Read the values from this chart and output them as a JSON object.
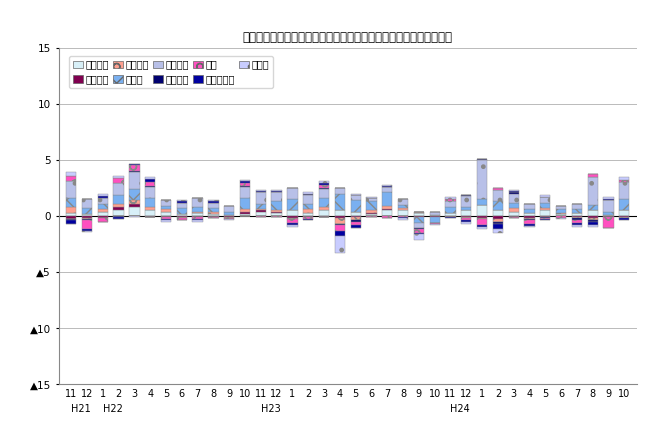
{
  "title": "三重県鉱工業生産の業種別前月比寄与度の推移（季節調整済指数）",
  "categories": [
    "11",
    "12",
    "1",
    "2",
    "3",
    "4",
    "5",
    "6",
    "7",
    "8",
    "9",
    "10",
    "11",
    "12",
    "1",
    "2",
    "3",
    "4",
    "5",
    "6",
    "7",
    "8",
    "9",
    "10",
    "11",
    "12",
    "1",
    "2",
    "3",
    "4",
    "5",
    "6",
    "7",
    "8",
    "9",
    "10"
  ],
  "year_labels": [
    {
      "label": "H21",
      "index": 0
    },
    {
      "label": "H22",
      "index": 2
    },
    {
      "label": "H23",
      "index": 12
    },
    {
      "label": "H24",
      "index": 24
    }
  ],
  "series_names": [
    "一般機械",
    "電気機械",
    "情報通信",
    "電デバ",
    "輸送機械",
    "窯業土石",
    "化学",
    "その他工業",
    "その他"
  ],
  "ylim": [
    -15,
    15
  ],
  "yticks": [
    -15,
    -10,
    -5,
    0,
    5,
    10,
    15
  ],
  "colors": {
    "一般機械": "#d8f0f8",
    "電気機械": "#800050",
    "情報通信": "#ffa090",
    "電デバ": "#7ab0f0",
    "輸送機械": "#b8c0e8",
    "窯業土石": "#000070",
    "化学": "#ff50c0",
    "その他工業": "#0000a0",
    "その他": "#c8ccff"
  },
  "hatches": {
    "一般機械": "",
    "電気機械": "",
    "情報通信": "o",
    "電デバ": "x",
    "輸送機械": ".",
    "窯業土石": "",
    "化学": "o",
    "その他工業": "",
    "その他": "."
  },
  "data": {
    "一般機械": [
      0.3,
      0.2,
      0.4,
      0.5,
      0.8,
      0.5,
      0.4,
      0.2,
      0.3,
      0.2,
      0.1,
      0.2,
      0.4,
      0.3,
      0.5,
      0.3,
      0.5,
      0.5,
      0.4,
      0.2,
      0.5,
      0.5,
      0.3,
      0.1,
      0.3,
      0.5,
      1.0,
      0.5,
      0.4,
      0.3,
      0.5,
      0.2,
      0.3,
      0.5,
      0.1,
      0.5
    ],
    "電気機械": [
      -0.3,
      -0.2,
      -0.2,
      0.3,
      0.3,
      -0.1,
      -0.1,
      -0.1,
      -0.1,
      -0.1,
      -0.05,
      0.2,
      0.1,
      0.1,
      -0.2,
      -0.1,
      -0.1,
      -0.2,
      -0.1,
      0.1,
      0.1,
      0.0,
      -0.1,
      -0.1,
      -0.1,
      -0.1,
      -0.2,
      -0.3,
      -0.1,
      -0.2,
      -0.1,
      0.0,
      -0.1,
      -0.2,
      -0.05,
      -0.1
    ],
    "情報通信": [
      0.5,
      -0.1,
      0.2,
      0.3,
      0.3,
      0.3,
      0.2,
      -0.1,
      0.1,
      0.2,
      -0.1,
      0.2,
      0.1,
      0.1,
      -0.1,
      0.3,
      0.3,
      -0.5,
      -0.3,
      0.2,
      0.3,
      0.2,
      0.1,
      0.0,
      0.0,
      -0.1,
      -0.1,
      -0.2,
      0.3,
      -0.1,
      0.2,
      0.1,
      -0.1,
      -0.2,
      0.0,
      -0.1
    ],
    "電デバ": [
      0.8,
      0.5,
      0.5,
      0.8,
      1.0,
      0.8,
      0.3,
      0.5,
      0.4,
      0.3,
      0.3,
      1.0,
      0.5,
      0.8,
      1.0,
      0.5,
      0.8,
      1.5,
      1.0,
      0.8,
      1.2,
      0.3,
      -0.5,
      -0.5,
      0.5,
      0.3,
      0.5,
      0.8,
      0.5,
      0.3,
      0.5,
      0.3,
      0.3,
      0.5,
      0.3,
      1.0
    ],
    "輸送機械": [
      1.5,
      0.8,
      0.5,
      1.0,
      1.5,
      1.0,
      0.5,
      0.5,
      0.8,
      0.5,
      0.5,
      1.0,
      1.0,
      0.8,
      1.0,
      0.8,
      0.8,
      0.5,
      0.5,
      0.3,
      0.5,
      0.5,
      -0.5,
      0.3,
      0.5,
      1.0,
      3.5,
      1.0,
      0.8,
      0.5,
      0.5,
      0.3,
      0.5,
      2.5,
      1.0,
      1.5
    ],
    "窯業土石": [
      -0.1,
      -0.1,
      0.0,
      -0.1,
      0.1,
      0.1,
      0.0,
      0.0,
      0.0,
      0.0,
      0.0,
      0.1,
      0.0,
      0.0,
      0.0,
      0.1,
      0.1,
      -0.1,
      -0.1,
      0.0,
      0.0,
      0.0,
      -0.1,
      0.0,
      0.0,
      0.1,
      0.1,
      -0.2,
      0.1,
      -0.1,
      -0.1,
      0.0,
      -0.2,
      -0.1,
      0.0,
      0.0
    ],
    "化学": [
      0.5,
      -0.8,
      -0.3,
      0.5,
      0.5,
      0.3,
      -0.2,
      -0.2,
      -0.2,
      -0.1,
      -0.1,
      0.2,
      -0.1,
      -0.1,
      -0.3,
      -0.2,
      0.3,
      -0.5,
      -0.3,
      -0.1,
      -0.2,
      -0.1,
      -0.3,
      -0.1,
      0.2,
      -0.2,
      -0.5,
      0.2,
      -0.1,
      -0.3,
      -0.1,
      -0.2,
      -0.2,
      0.2,
      -1.0,
      0.2
    ],
    "その他工業": [
      -0.3,
      -0.1,
      0.2,
      -0.2,
      0.1,
      0.3,
      -0.1,
      0.1,
      -0.1,
      0.1,
      0.0,
      0.2,
      0.1,
      0.1,
      -0.2,
      -0.1,
      0.1,
      -0.5,
      -0.3,
      0.0,
      0.1,
      -0.1,
      -0.1,
      0.0,
      -0.1,
      -0.1,
      -0.2,
      -0.5,
      0.1,
      -0.2,
      -0.1,
      0.0,
      -0.2,
      -0.3,
      0.1,
      -0.2
    ],
    "その他": [
      0.3,
      -0.1,
      0.2,
      0.2,
      -0.1,
      0.2,
      -0.1,
      0.1,
      -0.1,
      0.1,
      -0.1,
      0.1,
      0.1,
      0.1,
      -0.2,
      0.1,
      0.2,
      -1.5,
      0.1,
      0.1,
      0.1,
      -0.2,
      -0.5,
      -0.1,
      0.2,
      -0.2,
      -0.2,
      -0.3,
      0.1,
      -0.1,
      0.2,
      -0.1,
      -0.2,
      -0.2,
      0.2,
      0.3
    ]
  }
}
